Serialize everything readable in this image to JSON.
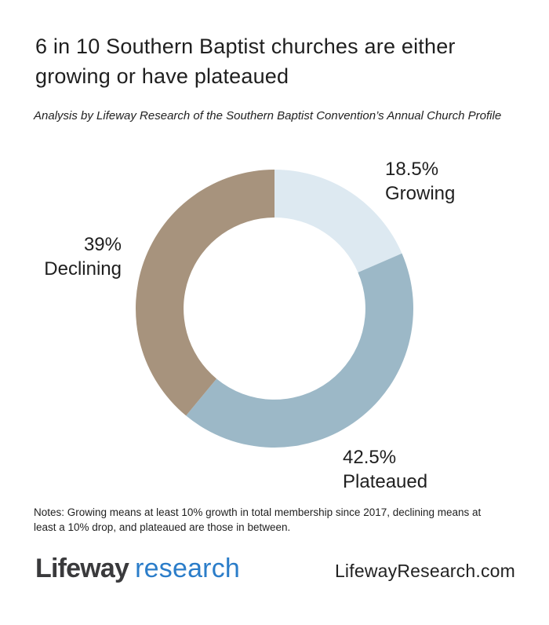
{
  "header": {
    "title": "6 in 10 Southern Baptist churches are either growing or have plateaued",
    "subtitle": "Analysis by Lifeway Research of the Southern Baptist Convention’s Annual Church Profile"
  },
  "chart_data": {
    "type": "pie",
    "subtype": "donut",
    "title": "6 in 10 Southern Baptist churches are either growing or have plateaued",
    "categories": [
      "Growing",
      "Plateaued",
      "Declining"
    ],
    "values": [
      18.5,
      42.5,
      39
    ],
    "colors": [
      "#dde9f1",
      "#9cb8c7",
      "#a7937d"
    ],
    "start_angle_deg": 0,
    "direction": "clockwise",
    "inner_radius_ratio": 0.655,
    "legend_position": "none",
    "labels": [
      {
        "value_text": "18.5%",
        "name": "Growing"
      },
      {
        "value_text": "42.5%",
        "name": "Plateaued"
      },
      {
        "value_text": "39%",
        "name": "Declining"
      }
    ]
  },
  "notes": {
    "text": "Notes: Growing means at least 10% growth in total membership since 2017, declining means at least a 10% drop, and plateaued are those in between."
  },
  "footer": {
    "logo_word1": "Lifeway",
    "logo_word2": "research",
    "url": "LifewayResearch.com",
    "logo_dark_color": "#3a3a3c",
    "logo_blue_color": "#2b7dc9"
  }
}
